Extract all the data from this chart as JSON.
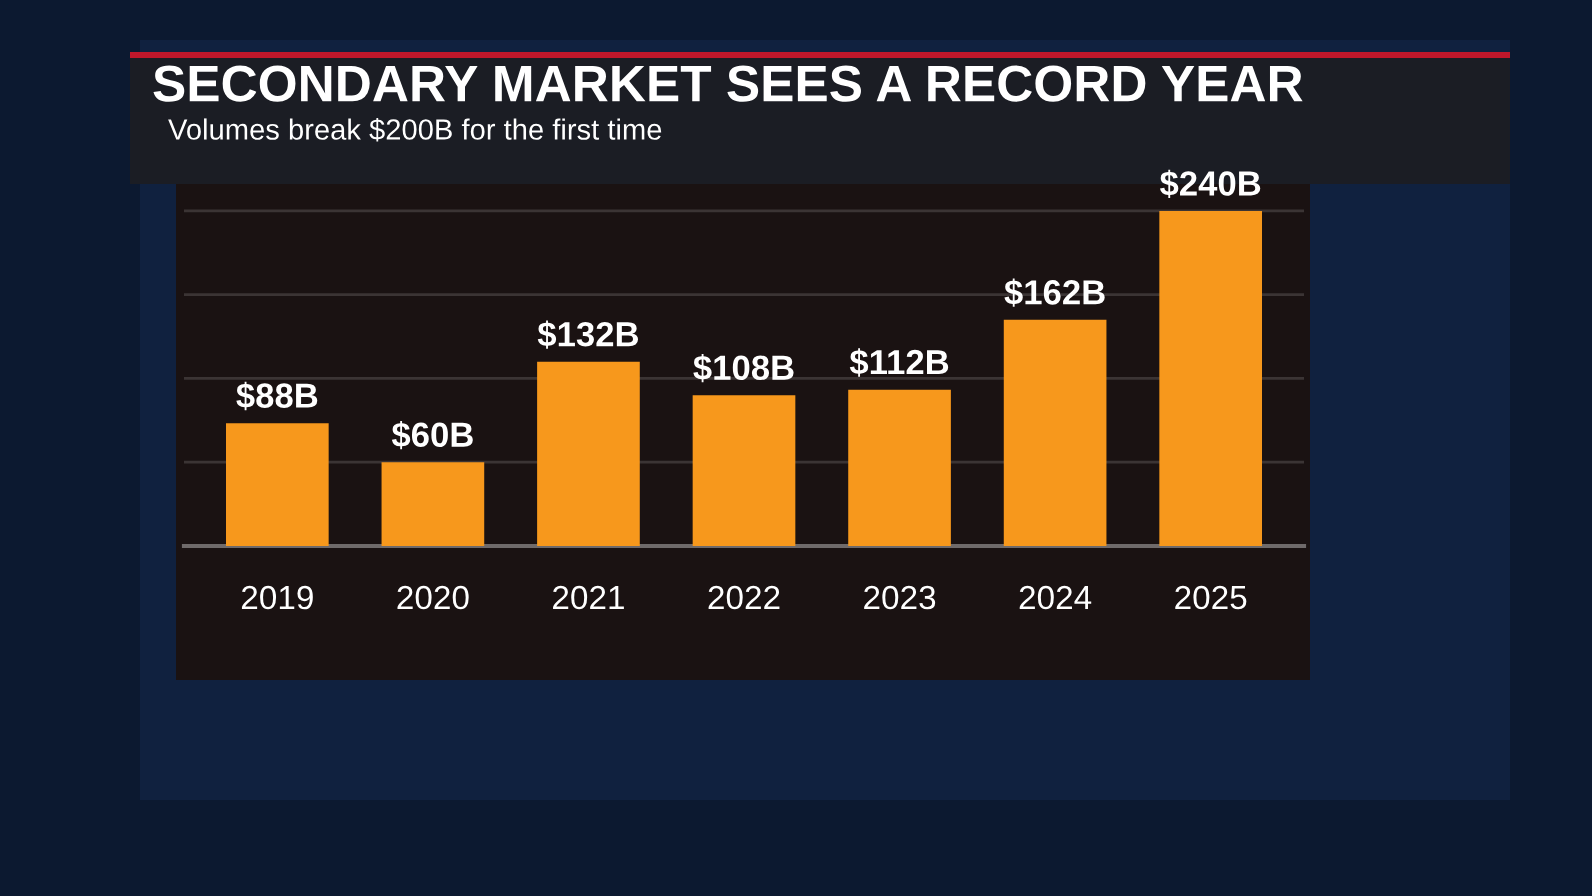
{
  "chart_data": {
    "type": "bar",
    "title": "SECONDARY MARKET SEES A RECORD YEAR",
    "subtitle": "Volumes break $200B for the first time",
    "categories": [
      "2019",
      "2020",
      "2021",
      "2022",
      "2023",
      "2024",
      "2025"
    ],
    "values": [
      88,
      60,
      132,
      108,
      112,
      162,
      240
    ],
    "value_labels": [
      "$88B",
      "$60B",
      "$132B",
      "$108B",
      "$112B",
      "$162B",
      "$240B"
    ],
    "color": "#f7981c",
    "ylim": [
      0,
      255
    ],
    "yticks": [
      {
        "value": 60,
        "label": null
      },
      {
        "value": 120,
        "label": null
      },
      {
        "value": 180,
        "label": null
      },
      {
        "value": 240,
        "label": null
      }
    ],
    "grid": "y",
    "tick_labels": "x"
  }
}
